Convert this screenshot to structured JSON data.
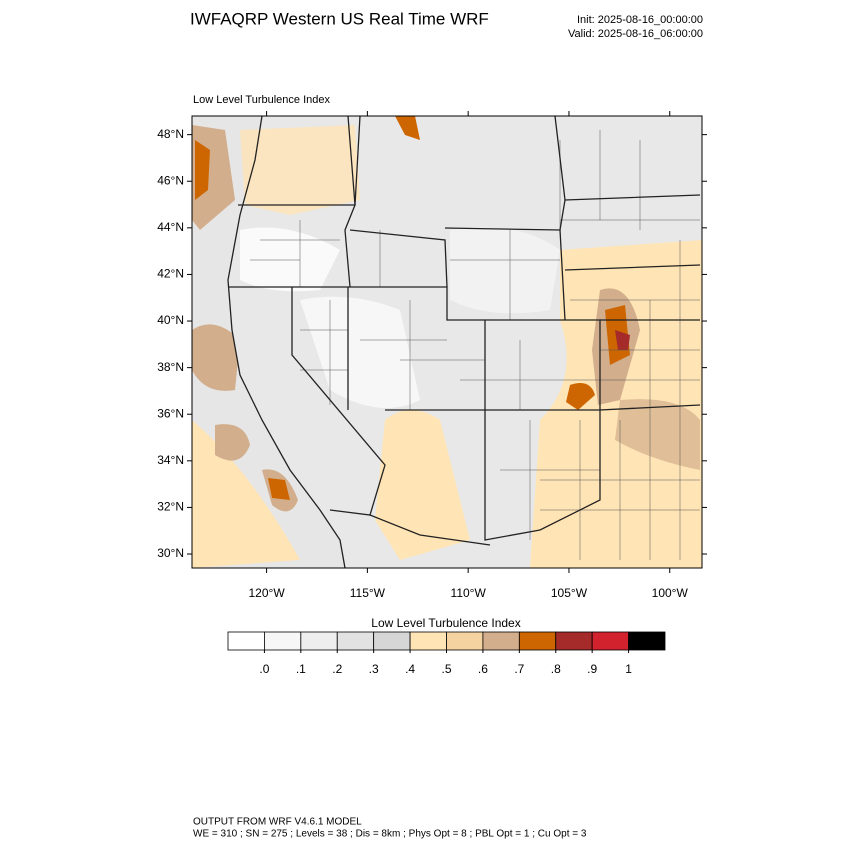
{
  "header": {
    "title": "IWFAQRP Western US Real Time WRF",
    "init": "Init: 2025-08-16_00:00:00",
    "valid": "Valid: 2025-08-16_06:00:00"
  },
  "chart_data": {
    "type": "contour-map",
    "subtitle": "Low Level Turbulence Index",
    "xlim": [
      -123.7,
      -98.4
    ],
    "ylim": [
      29.4,
      48.8
    ],
    "xticks": [
      {
        "value": -120,
        "label": "120°W"
      },
      {
        "value": -115,
        "label": "115°W"
      },
      {
        "value": -110,
        "label": "110°W"
      },
      {
        "value": -105,
        "label": "105°W"
      },
      {
        "value": -100,
        "label": "100°W"
      }
    ],
    "yticks": [
      {
        "value": 30,
        "label": "30°N"
      },
      {
        "value": 32,
        "label": "32°N"
      },
      {
        "value": 34,
        "label": "34°N"
      },
      {
        "value": 36,
        "label": "36°N"
      },
      {
        "value": 38,
        "label": "38°N"
      },
      {
        "value": 40,
        "label": "40°N"
      },
      {
        "value": 42,
        "label": "42°N"
      },
      {
        "value": 44,
        "label": "44°N"
      },
      {
        "value": 46,
        "label": "46°N"
      },
      {
        "value": 48,
        "label": "48°N"
      }
    ],
    "colorbar": {
      "title": "Low Level Turbulence Index",
      "levels": [
        {
          "value": 0,
          "label": ".0"
        },
        {
          "value": 0.1,
          "label": ".1"
        },
        {
          "value": 0.2,
          "label": ".2"
        },
        {
          "value": 0.3,
          "label": ".3"
        },
        {
          "value": 0.4,
          "label": ".4"
        },
        {
          "value": 0.5,
          "label": ".5"
        },
        {
          "value": 0.6,
          "label": ".6"
        },
        {
          "value": 0.7,
          "label": ".7"
        },
        {
          "value": 0.8,
          "label": ".8"
        },
        {
          "value": 0.9,
          "label": ".9"
        },
        1
      ],
      "colors": [
        "#ffffff",
        "#f7f7f7",
        "#eeeeee",
        "#e2e2e2",
        "#d6d6d6",
        "#ffe4b5",
        "#f5d3a0",
        "#d2ae8c",
        "#cd6600",
        "#a52a2a",
        "#d2222d",
        "#000000"
      ]
    }
  },
  "footer": {
    "line1": "OUTPUT FROM WRF V4.6.1 MODEL",
    "line2": "WE = 310 ; SN = 275 ; Levels = 38 ; Dis = 8km ; Phys Opt = 8 ; PBL Opt = 1 ; Cu Opt = 3"
  }
}
